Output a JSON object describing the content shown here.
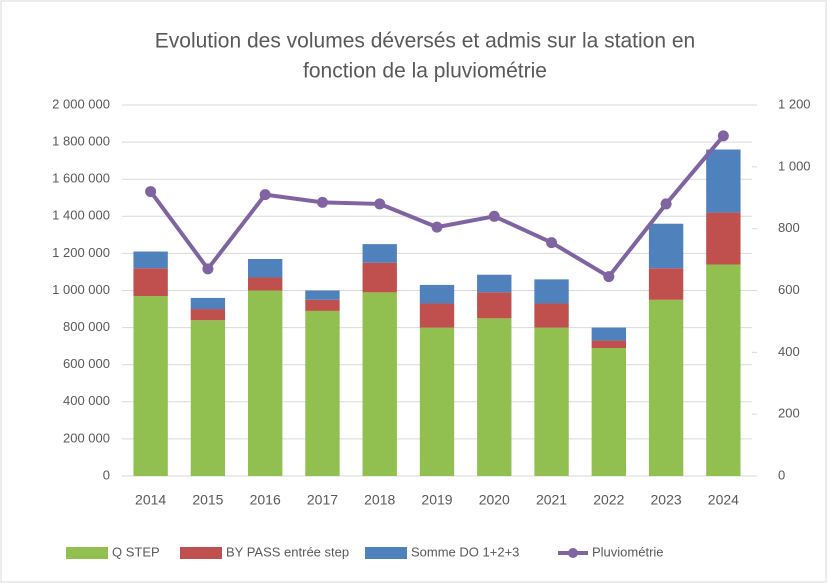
{
  "chart_data": {
    "type": "bar_line",
    "title": [
      "Evolution des volumes déversés et admis sur la station en",
      "fonction de la pluviométrie"
    ],
    "categories": [
      "2014",
      "2015",
      "2016",
      "2017",
      "2018",
      "2019",
      "2020",
      "2021",
      "2022",
      "2023",
      "2024"
    ],
    "series": [
      {
        "name": "Q STEP",
        "color": "#92c050",
        "values": [
          970000,
          840000,
          1000000,
          890000,
          990000,
          800000,
          850000,
          800000,
          690000,
          950000,
          1140000
        ]
      },
      {
        "name": "BY PASS entrée step",
        "color": "#c0504d",
        "values": [
          150000,
          60000,
          70000,
          60000,
          160000,
          130000,
          140000,
          130000,
          40000,
          170000,
          280000
        ]
      },
      {
        "name": "Somme DO 1+2+3",
        "color": "#4f81bd",
        "values": [
          90000,
          60000,
          100000,
          50000,
          100000,
          100000,
          95000,
          130000,
          70000,
          240000,
          340000
        ]
      },
      {
        "name": "Pluviométrie",
        "color": "#8064a2",
        "axis": "y2",
        "values": [
          920,
          670,
          910,
          885,
          880,
          805,
          840,
          755,
          645,
          880,
          1100
        ]
      }
    ],
    "ylim": [
      0,
      2000000
    ],
    "yticks": [
      0,
      {
        "value": 200000,
        "label": "200 000"
      },
      {
        "value": 400000,
        "label": "400 000"
      },
      {
        "value": 600000,
        "label": "600 000"
      },
      {
        "value": 800000,
        "label": "800 000"
      },
      {
        "value": 1000000,
        "label": "1 000 000"
      },
      {
        "value": 1200000,
        "label": "1 200 000"
      },
      {
        "value": 1400000,
        "label": "1 400 000"
      },
      {
        "value": 1600000,
        "label": "1 600 000"
      },
      {
        "value": 1800000,
        "label": "1 800 000"
      },
      {
        "value": 2000000,
        "label": "2 000 000"
      }
    ],
    "y2lim": [
      0,
      1200
    ],
    "y2ticks": [
      0,
      200,
      400,
      600,
      800,
      {
        "value": 1000,
        "label": "1 000"
      },
      {
        "value": 1200,
        "label": "1 200"
      }
    ],
    "grid": true
  }
}
